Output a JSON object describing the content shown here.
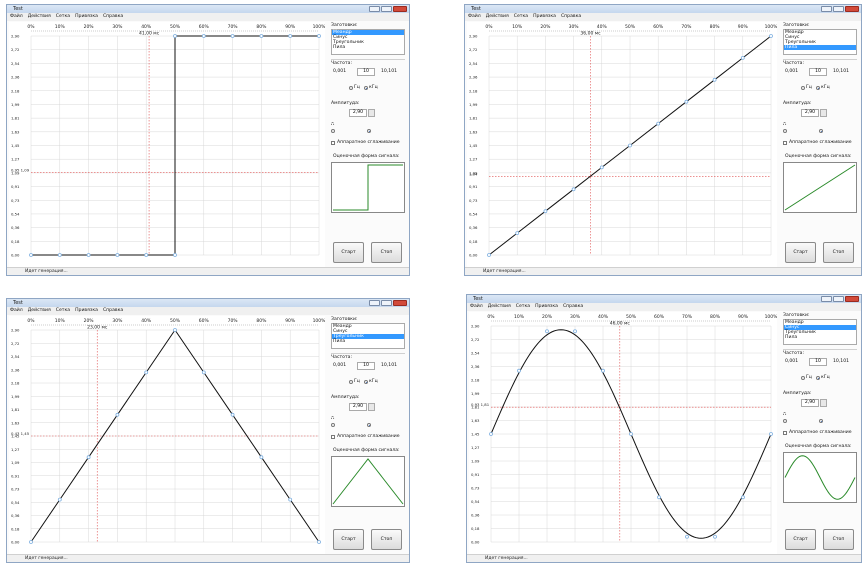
{
  "common": {
    "app_title": "Test",
    "menu": [
      "Файл",
      "Действия",
      "Сетка",
      "Привязка",
      "Справка"
    ],
    "status_text": "Идет генерация...",
    "presets_label": "Заготовки:",
    "presets": [
      "Меандр",
      "Синус",
      "Треугольник",
      "Пила"
    ],
    "freq_label": "Частота:",
    "freq_min": "0,001",
    "freq_value": "10",
    "freq_max": "10,101",
    "unit_hz": "Гц",
    "unit_khz": "кГц",
    "amp_label": "Амплитуда:",
    "amp_value": "2,90",
    "hw_smoothing_label": "Аппаратное сглаживание",
    "preview_label": "Оценочная форма сигнала:",
    "start_label": "Старт",
    "stop_label": "Стоп",
    "x_ticks": [
      "0%",
      "10%",
      "20%",
      "30%",
      "40%",
      "50%",
      "60%",
      "70%",
      "80%",
      "90%",
      "100%"
    ],
    "y_ticks": [
      "2,90",
      "2,72",
      "2,54",
      "2,36",
      "2,18",
      "1,99",
      "1,81",
      "1,63",
      "1,45",
      "1,27",
      "1,09",
      "0,91",
      "0,73",
      "0,54",
      "0,36",
      "0,18",
      "0,00"
    ],
    "colors": {
      "curve": "#111111",
      "marker": "#7fb0e0",
      "cursor": "#e05050",
      "grid": "#d8d8d8",
      "preview": "#2a8a2a",
      "selected": "#3399ff"
    }
  },
  "windows": [
    {
      "selected_preset": 0,
      "cursor_time": "41,00 мс",
      "cursor_x_pct": 41,
      "cursor_y_label": "0,95 1,09",
      "cursor_y_val": 1.09,
      "chart_data": {
        "type": "line",
        "x": [
          0,
          10,
          20,
          30,
          40,
          50,
          50,
          60,
          70,
          80,
          90,
          100
        ],
        "y": [
          0,
          0,
          0,
          0,
          0,
          0,
          2.9,
          2.9,
          2.9,
          2.9,
          2.9,
          2.9
        ],
        "xlim": [
          0,
          100
        ],
        "ylim": [
          0,
          2.9
        ]
      }
    },
    {
      "selected_preset": 3,
      "cursor_time": "36,00 мс",
      "cursor_x_pct": 36,
      "cursor_y_label": "1,04",
      "cursor_y_val": 1.04,
      "chart_data": {
        "type": "line",
        "x": [
          0,
          10,
          20,
          30,
          40,
          50,
          60,
          70,
          80,
          90,
          100
        ],
        "y": [
          0,
          0.29,
          0.58,
          0.87,
          1.16,
          1.45,
          1.74,
          2.03,
          2.32,
          2.61,
          2.9
        ],
        "xlim": [
          0,
          100
        ],
        "ylim": [
          0,
          2.9
        ]
      }
    },
    {
      "selected_preset": 2,
      "cursor_time": "23,00 мс",
      "cursor_x_pct": 23,
      "cursor_y_label": "0,43 1,45",
      "cursor_y_val": 1.45,
      "chart_data": {
        "type": "line",
        "x": [
          0,
          10,
          20,
          30,
          40,
          50,
          60,
          70,
          80,
          90,
          100
        ],
        "y": [
          0,
          0.58,
          1.16,
          1.74,
          2.32,
          2.9,
          2.32,
          1.74,
          1.16,
          0.58,
          0
        ],
        "xlim": [
          0,
          100
        ],
        "ylim": [
          0,
          2.9
        ]
      }
    },
    {
      "selected_preset": 1,
      "cursor_time": "46,00 мс",
      "cursor_x_pct": 46,
      "cursor_y_label": "0,93 1,81",
      "cursor_y_val": 1.81,
      "chart_data": {
        "type": "line",
        "x": [
          0,
          10,
          20,
          30,
          40,
          50,
          60,
          70,
          80,
          90,
          100
        ],
        "y": [
          1.45,
          2.3,
          2.83,
          2.83,
          2.3,
          1.45,
          0.6,
          0.07,
          0.07,
          0.6,
          1.45
        ],
        "xlim": [
          0,
          100
        ],
        "ylim": [
          0,
          2.9
        ]
      }
    }
  ]
}
